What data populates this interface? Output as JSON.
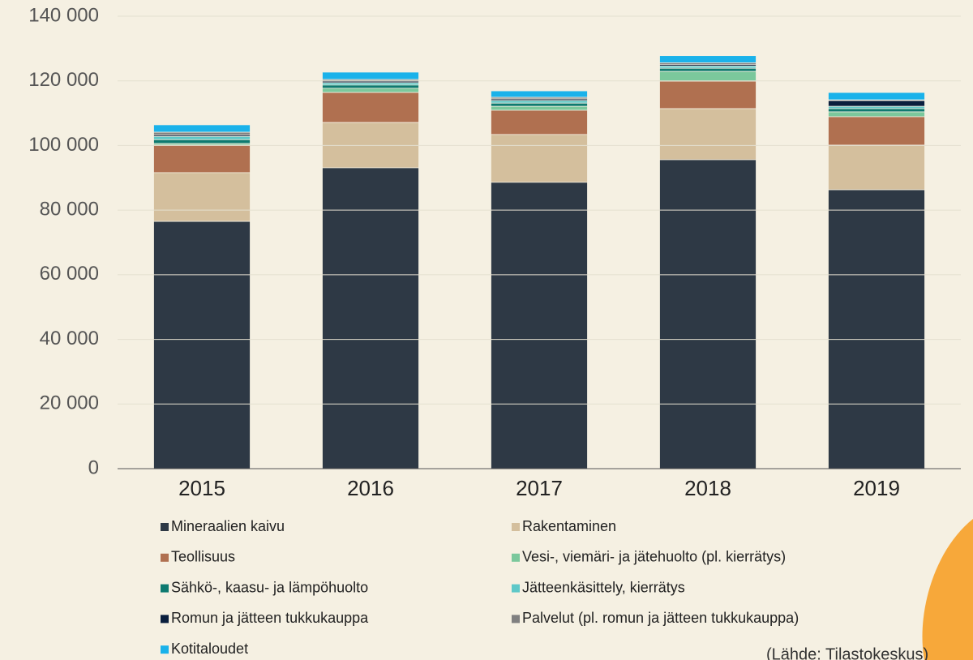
{
  "chart_data": {
    "type": "stacked_bar",
    "categories": [
      "2015",
      "2016",
      "2017",
      "2018",
      "2019"
    ],
    "series": [
      {
        "name": "Mineraalien kaivu",
        "color": "#2e3945",
        "values": [
          76500,
          93100,
          88600,
          95600,
          86300
        ]
      },
      {
        "name": "Rakentaminen",
        "color": "#d4bf9d",
        "values": [
          15100,
          14000,
          14800,
          15800,
          13800
        ]
      },
      {
        "name": "Teollisuus",
        "color": "#b07050",
        "values": [
          8500,
          9300,
          7500,
          8500,
          8800
        ]
      },
      {
        "name": "Vesi-, viemäri- ja jätehuolto (pl. kierrätys)",
        "color": "#7bc89c",
        "values": [
          500,
          1300,
          1200,
          3000,
          1500
        ]
      },
      {
        "name": "Sähkö-, kaasu- ja lämpöhuolto",
        "color": "#0e7a70",
        "values": [
          1200,
          1000,
          1000,
          1000,
          1000
        ]
      },
      {
        "name": "Jätteenkäsittely, kierrätys",
        "color": "#5ec8c8",
        "values": [
          1000,
          700,
          800,
          700,
          700
        ]
      },
      {
        "name": "Romun ja jätteen tukkukauppa",
        "color": "#0a1f3e",
        "values": [
          500,
          500,
          500,
          500,
          1800
        ]
      },
      {
        "name": "Palvelut (pl. romun ja jätteen tukkukauppa)",
        "color": "#808080",
        "values": [
          800,
          500,
          500,
          500,
          200
        ]
      },
      {
        "name": "Kotitaloudet",
        "color": "#1ab2ea",
        "values": [
          2300,
          2300,
          2000,
          2200,
          2300
        ]
      }
    ],
    "ylim": [
      0,
      140000
    ],
    "yticks": [
      0,
      {
        "value": 20000,
        "label": "20 000"
      },
      {
        "value": 40000,
        "label": "40 000"
      },
      {
        "value": 60000,
        "label": "60 000"
      },
      {
        "value": 80000,
        "label": "80 000"
      },
      {
        "value": 100000,
        "label": "100 000"
      },
      {
        "value": 120000,
        "label": "120 000"
      },
      {
        "value": 140000,
        "label": "140 000"
      }
    ],
    "grid": true,
    "note": "(Lähde: Tilastokeskus)"
  }
}
